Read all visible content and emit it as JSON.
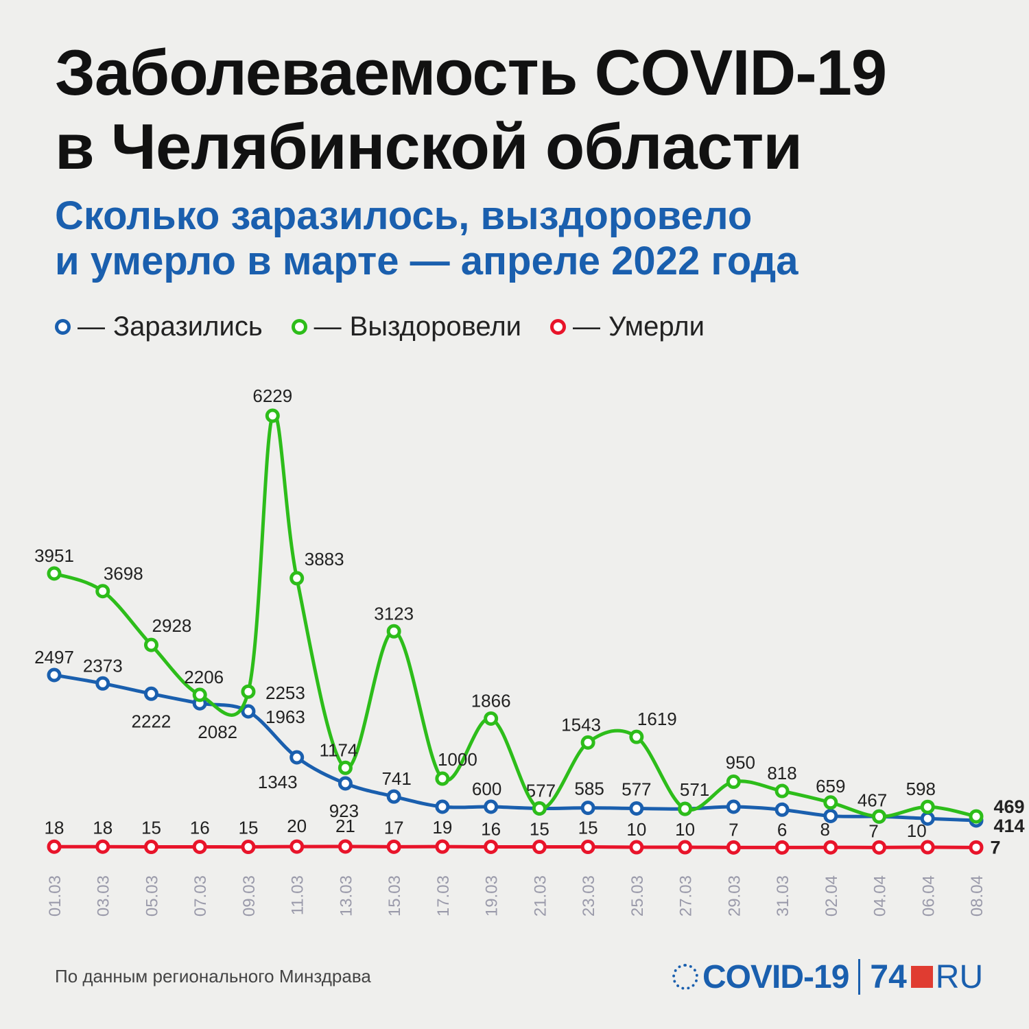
{
  "header": {
    "title_line1": "Заболеваемость COVID-19",
    "title_line2": "в Челябинской области",
    "subtitle_line1": "Сколько заразилось, выздоровело",
    "subtitle_line2": "и умерло в марте — апреле 2022 года"
  },
  "legend": [
    {
      "dash": "—",
      "label": "Заразились",
      "color": "#1a5fae"
    },
    {
      "dash": "—",
      "label": "Выздоровели",
      "color": "#2dbd1a"
    },
    {
      "dash": "—",
      "label": "Умерли",
      "color": "#e8142a"
    }
  ],
  "footer": {
    "source": "По данным регионального Минздрава",
    "logo_covid": "COVID-19",
    "logo_74": "74",
    "logo_ru": "RU"
  },
  "chart_data": {
    "type": "line",
    "x": [
      "01.03",
      "03.03",
      "05.03",
      "07.03",
      "09.03",
      "11.03",
      "13.03",
      "15.03",
      "17.03",
      "19.03",
      "21.03",
      "23.03",
      "25.03",
      "27.03",
      "29.03",
      "31.03",
      "02.04",
      "04.04",
      "06.04",
      "08.04"
    ],
    "series": [
      {
        "name": "Заразились",
        "color": "#1a5fae",
        "values": [
          2497,
          2373,
          2222,
          2082,
          1963,
          1343,
          923,
          741,
          600,
          600,
          577,
          585,
          577,
          571,
          600,
          560,
          475,
          467,
          440,
          414
        ],
        "labels": [
          "2497",
          "2373",
          "2222",
          "2082",
          "1963",
          "1343",
          "923",
          "741",
          "",
          "600",
          "577",
          "585",
          "577",
          "571",
          "",
          "",
          "",
          "",
          "",
          "414"
        ]
      },
      {
        "name": "Выздоровели",
        "color": "#2dbd1a",
        "values": [
          3951,
          3698,
          2928,
          2206,
          2253,
          3883,
          1174,
          3123,
          1000,
          1866,
          577,
          1543,
          1619,
          571,
          950,
          818,
          659,
          467,
          598,
          469
        ],
        "labels": [
          "3951",
          "3698",
          "2928",
          "2206",
          "2253",
          "3883",
          "1174",
          "3123",
          "1000",
          "1866",
          "",
          "1543",
          "1619",
          "",
          "950",
          "818",
          "659",
          "467",
          "598",
          "469"
        ],
        "extra_point": {
          "x": "10.03",
          "value": 6229,
          "label": "6229"
        }
      },
      {
        "name": "Умерли",
        "color": "#e8142a",
        "values": [
          18,
          18,
          15,
          16,
          15,
          20,
          21,
          17,
          19,
          16,
          15,
          15,
          10,
          10,
          7,
          6,
          8,
          7,
          10,
          7
        ],
        "labels": [
          "18",
          "18",
          "15",
          "16",
          "15",
          "20",
          "21",
          "17",
          "19",
          "16",
          "15",
          "15",
          "10",
          "10",
          "7",
          "6",
          "8",
          "7",
          "10",
          "7"
        ]
      }
    ]
  }
}
